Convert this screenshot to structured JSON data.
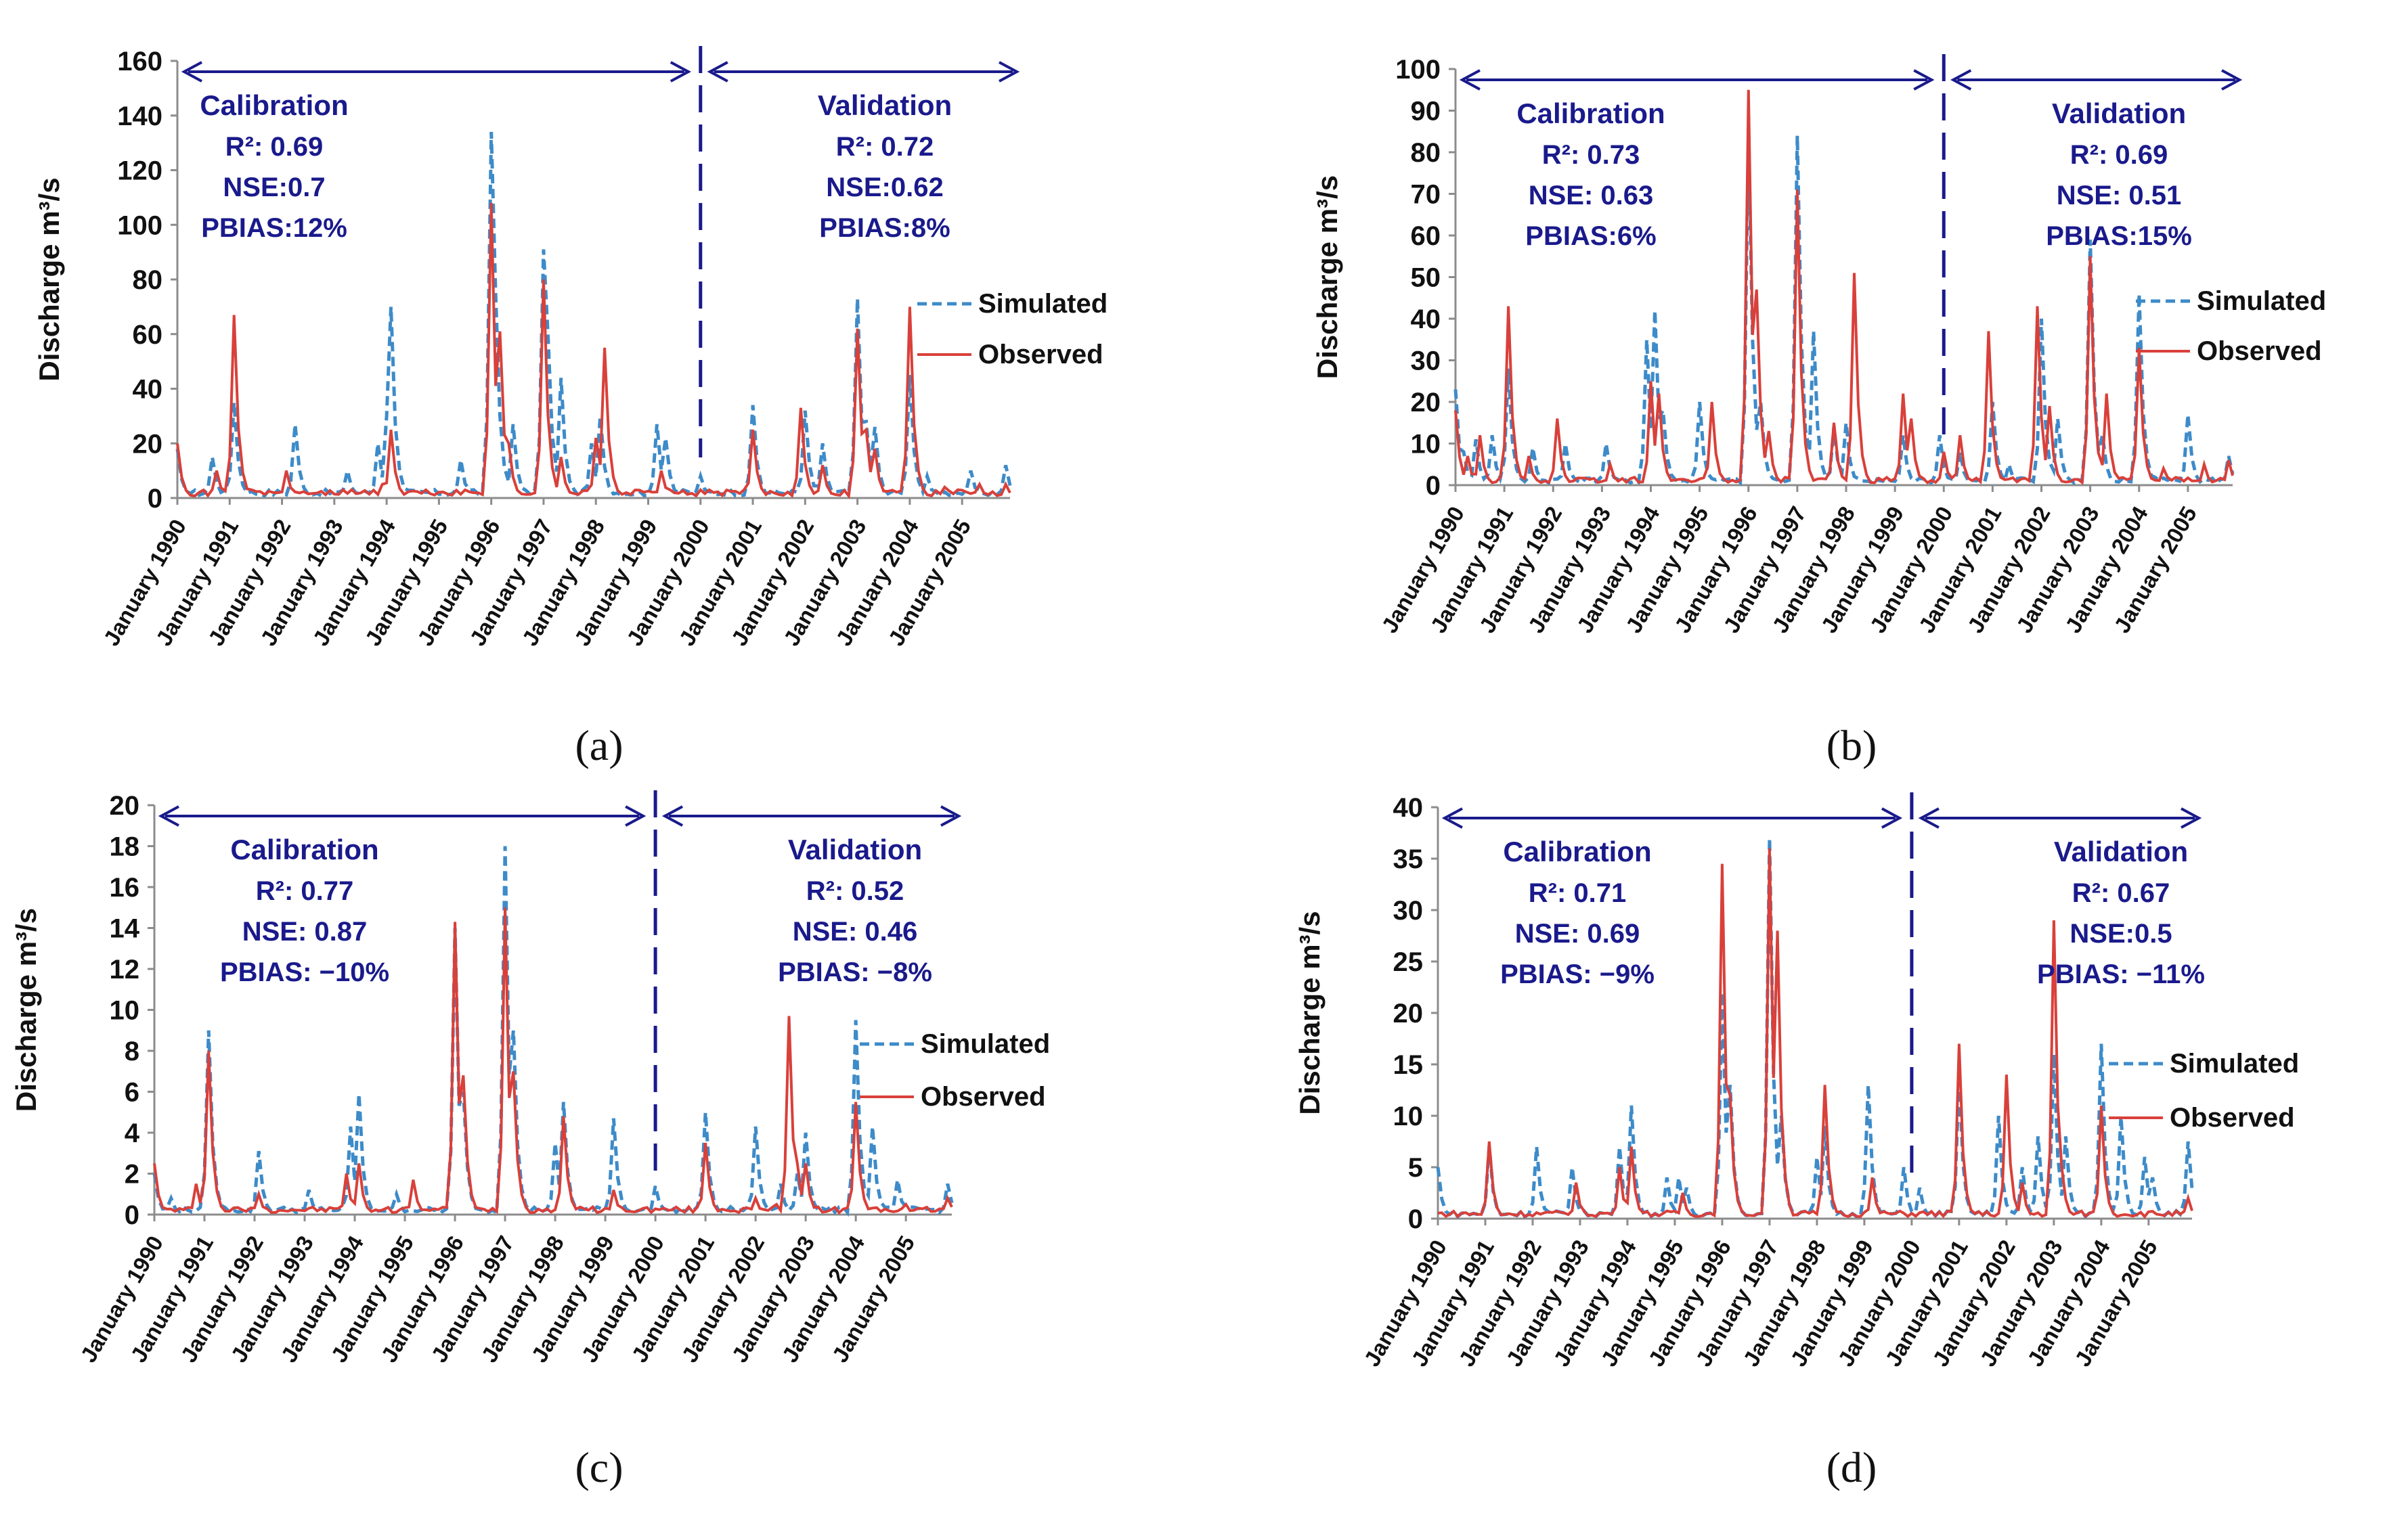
{
  "colors": {
    "simulated": "#3d8bc9",
    "observed": "#d9403a",
    "annotation": "#1a1a8c",
    "axis": "#8c8c8c"
  },
  "chart_data": [
    {
      "type": "line",
      "panel_label": "(a)",
      "ylabel": "Discharge m³/s",
      "ylim": [
        0,
        160
      ],
      "yticks": [
        0,
        20,
        40,
        60,
        80,
        100,
        120,
        140,
        160
      ],
      "x_start_year": 1990,
      "x_months": 192,
      "split_month": 120,
      "xtick_labels": [
        "January 1990",
        "January 1991",
        "January 1992",
        "January 1993",
        "January 1994",
        "January 1995",
        "January 1996",
        "January 1997",
        "January 1998",
        "January 1999",
        "January 2000",
        "January 2001",
        "January 2002",
        "January 2003",
        "January 2004",
        "January 2005"
      ],
      "legend": [
        "Simulated",
        "Observed"
      ],
      "calibration": {
        "title": "Calibration",
        "r2": "R²: 0.69",
        "nse": "NSE:0.7",
        "pbias": "PBIAS:12%"
      },
      "validation": {
        "title": "Validation",
        "r2": "R²: 0.72",
        "nse": "NSE:0.62",
        "pbias": "PBIAS:8%"
      },
      "series": [
        {
          "name": "Simulated",
          "peaks": [
            [
              0,
              18
            ],
            [
              8,
              15
            ],
            [
              13,
              35
            ],
            [
              27,
              27
            ],
            [
              39,
              10
            ],
            [
              46,
              20
            ],
            [
              48,
              30
            ],
            [
              49,
              70
            ],
            [
              50,
              25
            ],
            [
              65,
              14
            ],
            [
              72,
              134
            ],
            [
              73,
              75
            ],
            [
              74,
              30
            ],
            [
              77,
              27
            ],
            [
              84,
              91
            ],
            [
              85,
              60
            ],
            [
              88,
              44
            ],
            [
              95,
              20
            ],
            [
              97,
              30
            ],
            [
              110,
              27
            ],
            [
              112,
              22
            ],
            [
              120,
              8
            ],
            [
              132,
              34
            ],
            [
              144,
              32
            ],
            [
              148,
              20
            ],
            [
              156,
              73
            ],
            [
              158,
              28
            ],
            [
              160,
              26
            ],
            [
              168,
              45
            ],
            [
              172,
              8
            ],
            [
              182,
              10
            ],
            [
              190,
              12
            ]
          ]
        },
        {
          "name": "Observed",
          "peaks": [
            [
              0,
              20
            ],
            [
              9,
              10
            ],
            [
              13,
              67
            ],
            [
              25,
              10
            ],
            [
              38,
              3
            ],
            [
              47,
              5
            ],
            [
              49,
              25
            ],
            [
              72,
              108
            ],
            [
              74,
              61
            ],
            [
              76,
              20
            ],
            [
              84,
              80
            ],
            [
              88,
              15
            ],
            [
              96,
              22
            ],
            [
              98,
              55
            ],
            [
              111,
              10
            ],
            [
              120,
              3
            ],
            [
              132,
              25
            ],
            [
              143,
              33
            ],
            [
              148,
              12
            ],
            [
              156,
              62
            ],
            [
              158,
              25
            ],
            [
              160,
              18
            ],
            [
              168,
              70
            ],
            [
              176,
              4
            ],
            [
              184,
              5
            ],
            [
              190,
              5
            ]
          ]
        }
      ]
    },
    {
      "type": "line",
      "panel_label": "(b)",
      "ylabel": "Discharge m³/s",
      "ylim": [
        0,
        100
      ],
      "yticks": [
        0,
        10,
        20,
        30,
        40,
        50,
        60,
        70,
        80,
        90,
        100
      ],
      "x_start_year": 1990,
      "x_months": 192,
      "split_month": 120,
      "xtick_labels": [
        "January 1990",
        "January 1991",
        "January 1992",
        "January 1993",
        "January 1994",
        "January 1995",
        "January 1996",
        "January 1997",
        "January 1998",
        "January 1999",
        "January 2000",
        "January 2001",
        "January 2002",
        "January 2003",
        "January 2004",
        "January 2005"
      ],
      "legend": [
        "Simulated",
        "Observed"
      ],
      "calibration": {
        "title": "Calibration",
        "r2": "R²: 0.73",
        "nse": "NSE: 0.63",
        "pbias": "PBIAS:6%"
      },
      "validation": {
        "title": "Validation",
        "r2": "R²:  0.69",
        "nse": "NSE:  0.51",
        "pbias": "PBIAS:15%"
      },
      "series": [
        {
          "name": "Simulated",
          "peaks": [
            [
              0,
              23
            ],
            [
              2,
              8
            ],
            [
              5,
              11
            ],
            [
              9,
              12
            ],
            [
              13,
              28
            ],
            [
              19,
              9
            ],
            [
              27,
              10
            ],
            [
              37,
              10
            ],
            [
              47,
              35
            ],
            [
              49,
              42
            ],
            [
              51,
              18
            ],
            [
              60,
              20
            ],
            [
              72,
              85
            ],
            [
              73,
              35
            ],
            [
              75,
              20
            ],
            [
              84,
              84
            ],
            [
              85,
              35
            ],
            [
              88,
              37
            ],
            [
              93,
              14
            ],
            [
              96,
              15
            ],
            [
              110,
              12
            ],
            [
              119,
              12
            ],
            [
              124,
              8
            ],
            [
              132,
              20
            ],
            [
              136,
              5
            ],
            [
              144,
              40
            ],
            [
              148,
              16
            ],
            [
              156,
              59
            ],
            [
              159,
              12
            ],
            [
              168,
              46
            ],
            [
              180,
              17
            ],
            [
              190,
              7
            ]
          ]
        },
        {
          "name": "Observed",
          "peaks": [
            [
              0,
              18
            ],
            [
              3,
              7
            ],
            [
              6,
              12
            ],
            [
              13,
              43
            ],
            [
              18,
              7
            ],
            [
              25,
              16
            ],
            [
              38,
              5
            ],
            [
              48,
              25
            ],
            [
              50,
              22
            ],
            [
              63,
              20
            ],
            [
              72,
              95
            ],
            [
              74,
              47
            ],
            [
              77,
              13
            ],
            [
              84,
              71
            ],
            [
              86,
              8
            ],
            [
              93,
              15
            ],
            [
              98,
              51
            ],
            [
              110,
              22
            ],
            [
              112,
              16
            ],
            [
              120,
              8
            ],
            [
              124,
              12
            ],
            [
              131,
              37
            ],
            [
              143,
              43
            ],
            [
              146,
              19
            ],
            [
              156,
              55
            ],
            [
              160,
              22
            ],
            [
              168,
              33
            ],
            [
              174,
              4
            ],
            [
              184,
              5
            ],
            [
              190,
              6
            ]
          ]
        }
      ]
    },
    {
      "type": "line",
      "panel_label": "(c)",
      "ylabel": "Discharge m³/s",
      "ylim": [
        0,
        20
      ],
      "yticks": [
        0,
        2,
        4,
        6,
        8,
        10,
        12,
        14,
        16,
        18,
        20
      ],
      "x_start_year": 1990,
      "x_months": 192,
      "split_month": 120,
      "xtick_labels": [
        "January 1990",
        "January 1991",
        "January 1992",
        "January 1993",
        "January 1994",
        "January 1995",
        "January 1996",
        "January 1997",
        "January 1998",
        "January 1999",
        "January 2000",
        "January 2001",
        "January 2002",
        "January 2003",
        "January 2004",
        "January 2005"
      ],
      "legend": [
        "Simulated",
        "Observed"
      ],
      "calibration": {
        "title": "Calibration",
        "r2": "R²: 0.77",
        "nse": "NSE: 0.87",
        "pbias": "PBIAS: −10%"
      },
      "validation": {
        "title": "Validation",
        "r2": "R²:  0.52",
        "nse": "NSE:  0.46",
        "pbias": "PBIAS: −8%"
      },
      "series": [
        {
          "name": "Simulated",
          "peaks": [
            [
              0,
              2
            ],
            [
              4,
              0.8
            ],
            [
              13,
              9
            ],
            [
              25,
              3.1
            ],
            [
              37,
              1.2
            ],
            [
              47,
              4.3
            ],
            [
              49,
              5.9
            ],
            [
              58,
              1
            ],
            [
              72,
              14
            ],
            [
              74,
              6
            ],
            [
              84,
              18
            ],
            [
              86,
              9
            ],
            [
              96,
              3.5
            ],
            [
              98,
              5.5
            ],
            [
              110,
              4.7
            ],
            [
              120,
              1.4
            ],
            [
              132,
              5
            ],
            [
              144,
              4.3
            ],
            [
              150,
              1.5
            ],
            [
              154,
              2
            ],
            [
              156,
              4
            ],
            [
              168,
              9.5
            ],
            [
              172,
              4.3
            ],
            [
              178,
              1.7
            ],
            [
              190,
              1.5
            ]
          ]
        },
        {
          "name": "Observed",
          "peaks": [
            [
              0,
              2.5
            ],
            [
              10,
              1.5
            ],
            [
              13,
              8
            ],
            [
              25,
              1
            ],
            [
              46,
              2
            ],
            [
              49,
              2.5
            ],
            [
              62,
              1.7
            ],
            [
              72,
              14.3
            ],
            [
              74,
              6.8
            ],
            [
              84,
              15
            ],
            [
              86,
              7
            ],
            [
              98,
              4.8
            ],
            [
              110,
              1.2
            ],
            [
              132,
              3.5
            ],
            [
              144,
              0.8
            ],
            [
              149,
              0.5
            ],
            [
              152,
              9.7
            ],
            [
              154,
              2.5
            ],
            [
              156,
              2.5
            ],
            [
              168,
              5.5
            ],
            [
              180,
              0.5
            ],
            [
              190,
              0.8
            ]
          ]
        }
      ]
    },
    {
      "type": "line",
      "panel_label": "(d)",
      "ylabel": "Discharge m³/s",
      "ylim": [
        0,
        40
      ],
      "yticks": [
        0,
        5,
        10,
        15,
        20,
        25,
        30,
        35,
        40
      ],
      "x_start_year": 1990,
      "x_months": 192,
      "split_month": 120,
      "xtick_labels": [
        "January 1990",
        "January 1991",
        "January 1992",
        "January 1993",
        "January 1994",
        "January 1995",
        "January 1996",
        "January 1997",
        "January 1998",
        "January 1999",
        "January 2000",
        "January 2001",
        "January 2002",
        "January 2003",
        "January 2004",
        "January 2005"
      ],
      "legend": [
        "Simulated",
        "Observed"
      ],
      "calibration": {
        "title": "Calibration",
        "r2": "R²: 0.71",
        "nse": "NSE: 0.69",
        "pbias": "PBIAS: −9%"
      },
      "validation": {
        "title": "Validation",
        "r2": "R²: 0.67",
        "nse": "NSE:0.5",
        "pbias": "PBIAS: −11%"
      },
      "series": [
        {
          "name": "Simulated",
          "peaks": [
            [
              0,
              5
            ],
            [
              13,
              7
            ],
            [
              25,
              7
            ],
            [
              34,
              5
            ],
            [
              46,
              7
            ],
            [
              49,
              11
            ],
            [
              58,
              4
            ],
            [
              61,
              4
            ],
            [
              63,
              3
            ],
            [
              72,
              22
            ],
            [
              74,
              13
            ],
            [
              84,
              37
            ],
            [
              87,
              10
            ],
            [
              96,
              6
            ],
            [
              98,
              9
            ],
            [
              109,
              13
            ],
            [
              118,
              5
            ],
            [
              122,
              3
            ],
            [
              132,
              14
            ],
            [
              142,
              10
            ],
            [
              148,
              5
            ],
            [
              152,
              8
            ],
            [
              156,
              16
            ],
            [
              159,
              8
            ],
            [
              168,
              17
            ],
            [
              173,
              10
            ],
            [
              179,
              6
            ],
            [
              181,
              4
            ],
            [
              190,
              7.5
            ]
          ]
        },
        {
          "name": "Observed",
          "peaks": [
            [
              13,
              7.5
            ],
            [
              35,
              3.5
            ],
            [
              46,
              5
            ],
            [
              49,
              7
            ],
            [
              62,
              2.5
            ],
            [
              72,
              34.5
            ],
            [
              74,
              12
            ],
            [
              84,
              36
            ],
            [
              86,
              28
            ],
            [
              98,
              13
            ],
            [
              110,
              4
            ],
            [
              132,
              17
            ],
            [
              144,
              14
            ],
            [
              148,
              3.5
            ],
            [
              156,
              29
            ],
            [
              158,
              5
            ],
            [
              168,
              11
            ],
            [
              190,
              2
            ]
          ]
        }
      ]
    }
  ]
}
